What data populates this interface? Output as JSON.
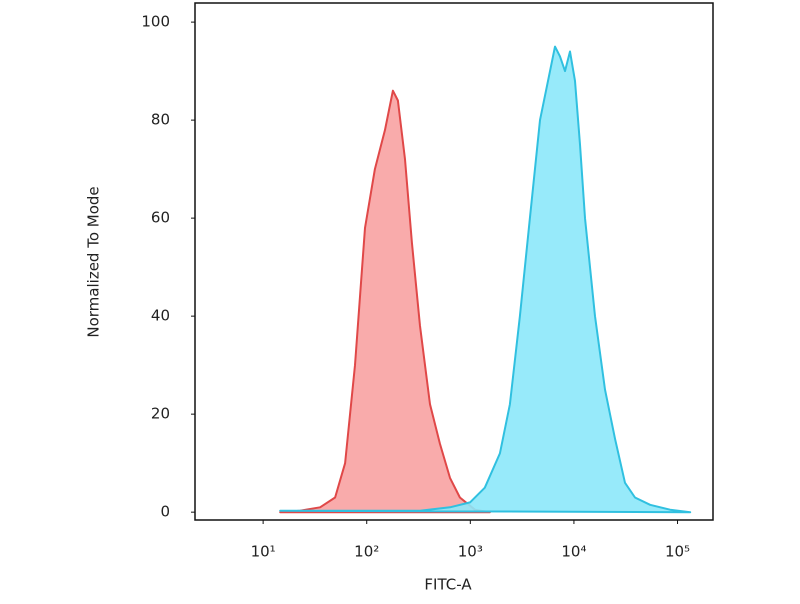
{
  "chart_data": {
    "type": "area",
    "xscale": "log",
    "xlabel": "FITC-A",
    "ylabel": "Normalized To Mode",
    "xlim": [
      2.2,
      220000
    ],
    "ylim": [
      -1.6,
      103.9
    ],
    "xticks": [
      {
        "value": 10,
        "label": "10¹"
      },
      {
        "value": 100,
        "label": "10²"
      },
      {
        "value": 1000,
        "label": "10³"
      },
      {
        "value": 10000,
        "label": "10⁴"
      },
      {
        "value": 100000,
        "label": "10⁵"
      }
    ],
    "yticks": [
      0,
      20,
      40,
      60,
      80,
      100
    ],
    "series": [
      {
        "color": "#e04848",
        "fill": "#f8a2a2",
        "x": [
          14.6,
          22.7,
          35.5,
          49.5,
          61.8,
          77.1,
          96.3,
          120,
          150,
          179,
          200,
          234,
          273,
          327,
          408,
          509,
          636,
          794,
          1107,
          1545
        ],
        "values": [
          0,
          0.3,
          1,
          3,
          10,
          30,
          58,
          70,
          78,
          86,
          84,
          72,
          55,
          38,
          22,
          14,
          7,
          3,
          0.5,
          0
        ]
      },
      {
        "color": "#30c0e0",
        "fill": "#8ce8fa",
        "x": [
          14.6,
          327,
          636,
          992,
          1380,
          1928,
          2410,
          3010,
          3760,
          4700,
          5620,
          6570,
          7340,
          8200,
          9160,
          10240,
          11440,
          12790,
          15970,
          19950,
          24900,
          31100,
          38900,
          54300,
          84800,
          132500
        ],
        "values": [
          0.3,
          0.3,
          1,
          2,
          5,
          12,
          22,
          40,
          60,
          80,
          88,
          95,
          93,
          90,
          94,
          88,
          75,
          60,
          40,
          25,
          15,
          6,
          3,
          1.5,
          0.5,
          0
        ]
      }
    ]
  }
}
